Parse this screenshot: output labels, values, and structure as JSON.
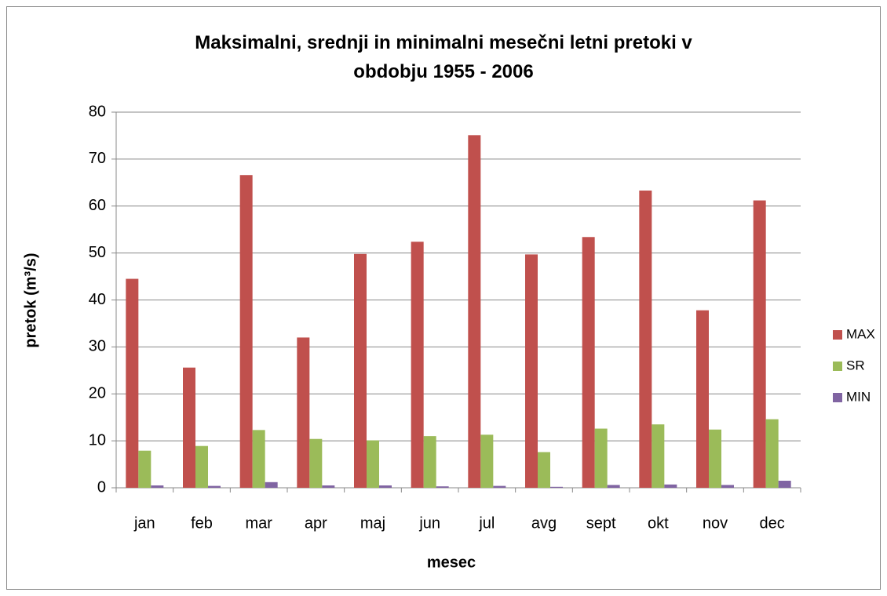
{
  "chart_data": {
    "type": "bar",
    "title": "Maksimalni, srednji in minimalni mesečni letni pretoki v obdobju 1955 - 2006",
    "xlabel": "mesec",
    "ylabel": "pretok (m³/s)",
    "categories": [
      "jan",
      "feb",
      "mar",
      "apr",
      "maj",
      "jun",
      "jul",
      "avg",
      "sept",
      "okt",
      "nov",
      "dec"
    ],
    "series": [
      {
        "name": "MAX",
        "color": "#c0504d",
        "values": [
          44.5,
          25.6,
          66.6,
          32.0,
          49.8,
          52.4,
          75.1,
          49.7,
          53.4,
          63.3,
          37.8,
          61.2
        ]
      },
      {
        "name": "SR",
        "color": "#9bbb59",
        "values": [
          7.9,
          8.9,
          12.3,
          10.4,
          10.1,
          11.0,
          11.3,
          7.6,
          12.6,
          13.5,
          12.4,
          14.6
        ]
      },
      {
        "name": "MIN",
        "color": "#8064a2",
        "values": [
          0.5,
          0.4,
          1.2,
          0.5,
          0.5,
          0.3,
          0.4,
          0.2,
          0.6,
          0.7,
          0.6,
          1.5
        ]
      }
    ],
    "ylim": [
      0,
      80
    ],
    "yticks": [
      0,
      10,
      20,
      30,
      40,
      50,
      60,
      70,
      80
    ],
    "grid": true,
    "legend": "right"
  }
}
